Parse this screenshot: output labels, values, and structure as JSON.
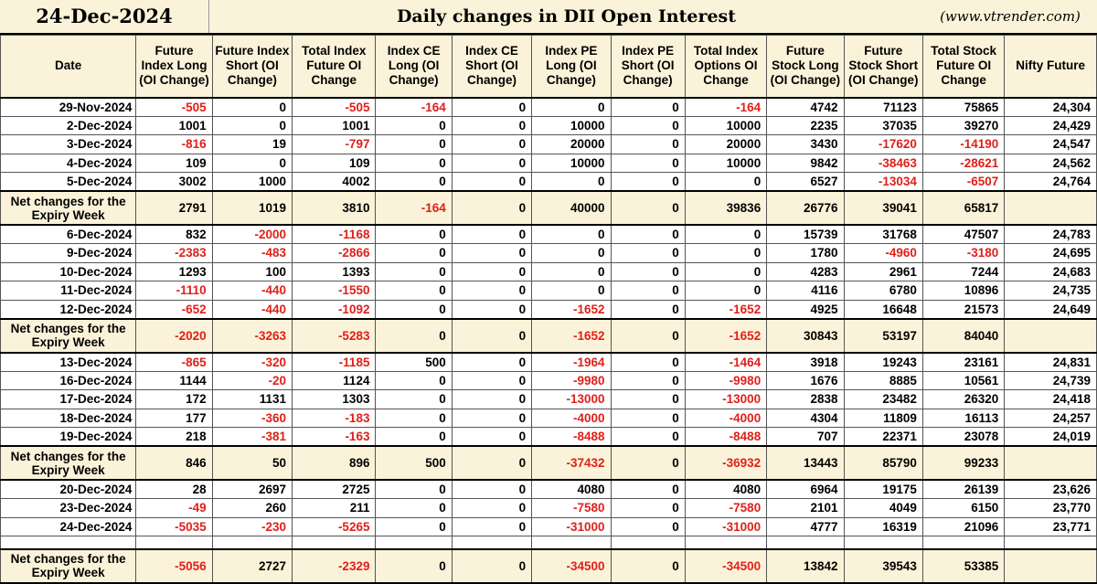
{
  "title": {
    "date": "24-Dec-2024",
    "main": "Daily changes in DII Open Interest",
    "site": "(www.vtrender.com)"
  },
  "columns": [
    "Date",
    "Future Index Long (OI Change)",
    "Future Index Short (OI Change)",
    "Total Index Future OI Change",
    "Index CE Long (OI Change)",
    "Index CE Short (OI Change)",
    "Index PE Long (OI Change)",
    "Index PE Short (OI Change)",
    "Total Index Options OI Change",
    "Future Stock Long (OI Change)",
    "Future Stock Short (OI Change)",
    "Total Stock Future OI Change",
    "Nifty Future"
  ],
  "net_label": "Net changes for the Expiry Week",
  "colors": {
    "header_bg": "#fbf3d9",
    "negative": "#e0201a",
    "text": "#000000"
  },
  "groups": [
    {
      "rows": [
        [
          "29-Nov-2024",
          "-505",
          "0",
          "-505",
          "-164",
          "0",
          "0",
          "0",
          "-164",
          "4742",
          "71123",
          "75865",
          "24,304"
        ],
        [
          "2-Dec-2024",
          "1001",
          "0",
          "1001",
          "0",
          "0",
          "10000",
          "0",
          "10000",
          "2235",
          "37035",
          "39270",
          "24,429"
        ],
        [
          "3-Dec-2024",
          "-816",
          "19",
          "-797",
          "0",
          "0",
          "20000",
          "0",
          "20000",
          "3430",
          "-17620",
          "-14190",
          "24,547"
        ],
        [
          "4-Dec-2024",
          "109",
          "0",
          "109",
          "0",
          "0",
          "10000",
          "0",
          "10000",
          "9842",
          "-38463",
          "-28621",
          "24,562"
        ],
        [
          "5-Dec-2024",
          "3002",
          "1000",
          "4002",
          "0",
          "0",
          "0",
          "0",
          "0",
          "6527",
          "-13034",
          "-6507",
          "24,764"
        ]
      ],
      "net": [
        "Net changes for the Expiry Week",
        "2791",
        "1019",
        "3810",
        "-164",
        "0",
        "40000",
        "0",
        "39836",
        "26776",
        "39041",
        "65817",
        ""
      ]
    },
    {
      "rows": [
        [
          "6-Dec-2024",
          "832",
          "-2000",
          "-1168",
          "0",
          "0",
          "0",
          "0",
          "0",
          "15739",
          "31768",
          "47507",
          "24,783"
        ],
        [
          "9-Dec-2024",
          "-2383",
          "-483",
          "-2866",
          "0",
          "0",
          "0",
          "0",
          "0",
          "1780",
          "-4960",
          "-3180",
          "24,695"
        ],
        [
          "10-Dec-2024",
          "1293",
          "100",
          "1393",
          "0",
          "0",
          "0",
          "0",
          "0",
          "4283",
          "2961",
          "7244",
          "24,683"
        ],
        [
          "11-Dec-2024",
          "-1110",
          "-440",
          "-1550",
          "0",
          "0",
          "0",
          "0",
          "0",
          "4116",
          "6780",
          "10896",
          "24,735"
        ],
        [
          "12-Dec-2024",
          "-652",
          "-440",
          "-1092",
          "0",
          "0",
          "-1652",
          "0",
          "-1652",
          "4925",
          "16648",
          "21573",
          "24,649"
        ]
      ],
      "net": [
        "Net changes for the Expiry Week",
        "-2020",
        "-3263",
        "-5283",
        "0",
        "0",
        "-1652",
        "0",
        "-1652",
        "30843",
        "53197",
        "84040",
        ""
      ]
    },
    {
      "rows": [
        [
          "13-Dec-2024",
          "-865",
          "-320",
          "-1185",
          "500",
          "0",
          "-1964",
          "0",
          "-1464",
          "3918",
          "19243",
          "23161",
          "24,831"
        ],
        [
          "16-Dec-2024",
          "1144",
          "-20",
          "1124",
          "0",
          "0",
          "-9980",
          "0",
          "-9980",
          "1676",
          "8885",
          "10561",
          "24,739"
        ],
        [
          "17-Dec-2024",
          "172",
          "1131",
          "1303",
          "0",
          "0",
          "-13000",
          "0",
          "-13000",
          "2838",
          "23482",
          "26320",
          "24,418"
        ],
        [
          "18-Dec-2024",
          "177",
          "-360",
          "-183",
          "0",
          "0",
          "-4000",
          "0",
          "-4000",
          "4304",
          "11809",
          "16113",
          "24,257"
        ],
        [
          "19-Dec-2024",
          "218",
          "-381",
          "-163",
          "0",
          "0",
          "-8488",
          "0",
          "-8488",
          "707",
          "22371",
          "23078",
          "24,019"
        ]
      ],
      "net": [
        "Net changes for the Expiry Week",
        "846",
        "50",
        "896",
        "500",
        "0",
        "-37432",
        "0",
        "-36932",
        "13443",
        "85790",
        "99233",
        ""
      ]
    },
    {
      "rows": [
        [
          "20-Dec-2024",
          "28",
          "2697",
          "2725",
          "0",
          "0",
          "4080",
          "0",
          "4080",
          "6964",
          "19175",
          "26139",
          "23,626"
        ],
        [
          "23-Dec-2024",
          "-49",
          "260",
          "211",
          "0",
          "0",
          "-7580",
          "0",
          "-7580",
          "2101",
          "4049",
          "6150",
          "23,770"
        ],
        [
          "24-Dec-2024",
          "-5035",
          "-230",
          "-5265",
          "0",
          "0",
          "-31000",
          "0",
          "-31000",
          "4777",
          "16319",
          "21096",
          "23,771"
        ],
        [
          "",
          "",
          "",
          "",
          "",
          "",
          "",
          "",
          "",
          "",
          "",
          "",
          ""
        ]
      ],
      "net": [
        "Net changes for the Expiry Week",
        "-5056",
        "2727",
        "-2329",
        "0",
        "0",
        "-34500",
        "0",
        "-34500",
        "13842",
        "39543",
        "53385",
        ""
      ]
    }
  ]
}
